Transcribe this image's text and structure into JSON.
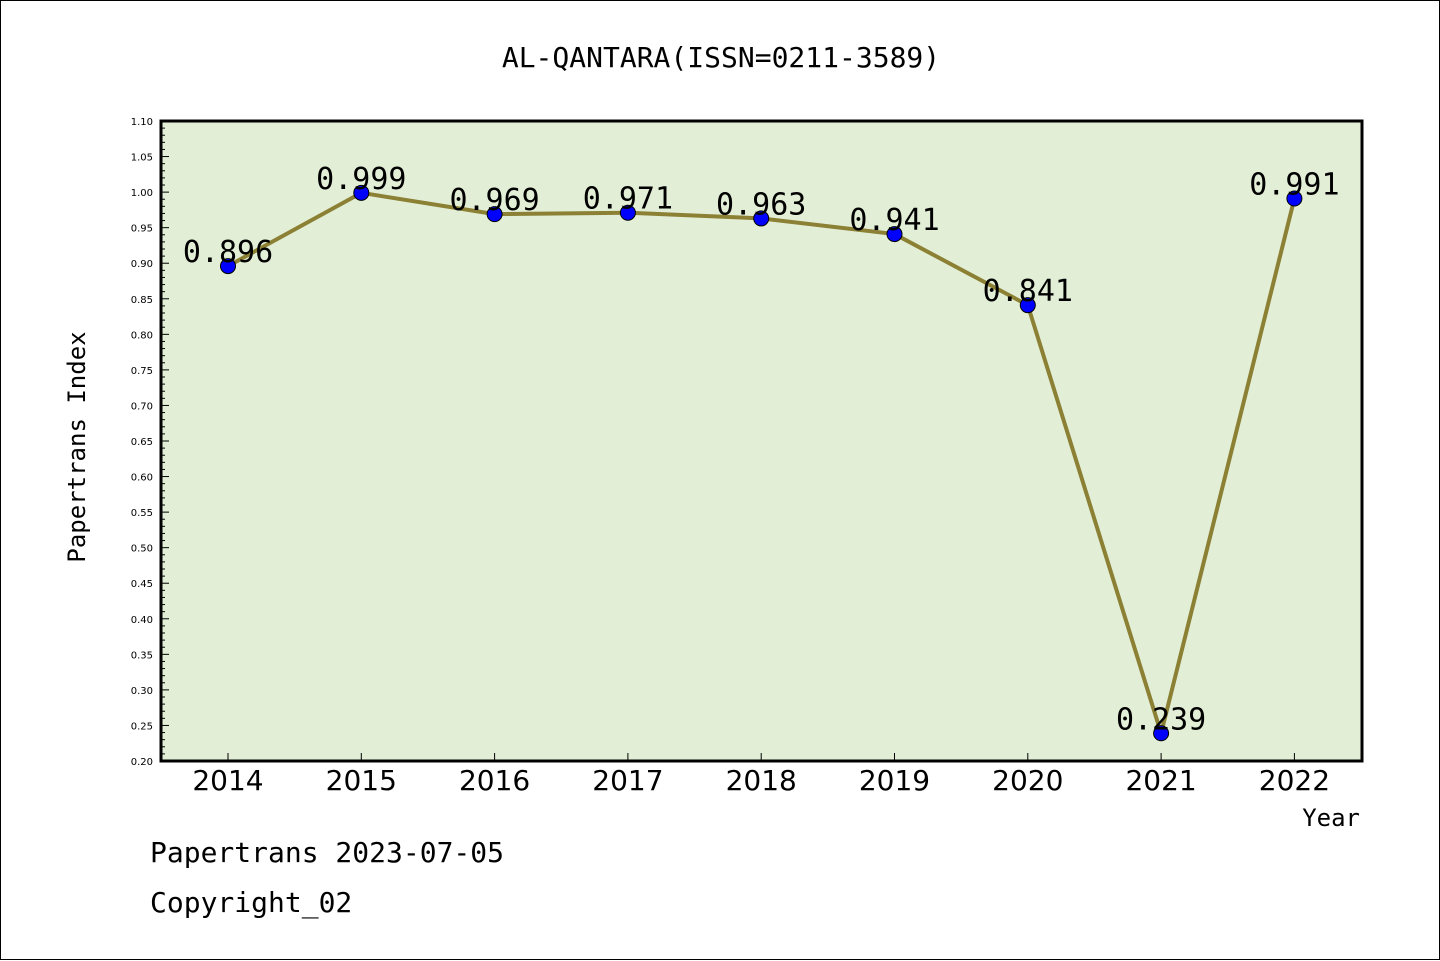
{
  "footer": {
    "date_line": "Papertrans 2023-07-05",
    "copyright": "Copyright_02"
  },
  "colors": {
    "plot_background": "#e2efd6",
    "line": "#8b8034",
    "marker": "#0000ff"
  },
  "chart_data": {
    "type": "line",
    "title": "AL-QANTARA(ISSN=0211-3589)",
    "xlabel": "Year",
    "ylabel": "Papertrans Index",
    "categories": [
      "2014",
      "2015",
      "2016",
      "2017",
      "2018",
      "2019",
      "2020",
      "2021",
      "2022"
    ],
    "series": [
      {
        "values": [
          0.896,
          0.999,
          0.969,
          0.971,
          0.963,
          0.941,
          0.841,
          0.239,
          0.991
        ],
        "labels": [
          "0.896",
          "0.999",
          "0.969",
          "0.971",
          "0.963",
          "0.941",
          "0.841",
          "0.239",
          "0.991"
        ]
      }
    ],
    "ylim": [
      0.2,
      1.1
    ],
    "yticks": [
      "0.20",
      "0.25",
      "0.30",
      "0.35",
      "0.40",
      "0.45",
      "0.50",
      "0.55",
      "0.60",
      "0.65",
      "0.70",
      "0.75",
      "0.80",
      "0.85",
      "0.90",
      "0.95",
      "1.00",
      "1.05",
      "1.10"
    ],
    "grid": false,
    "legend": "none"
  }
}
